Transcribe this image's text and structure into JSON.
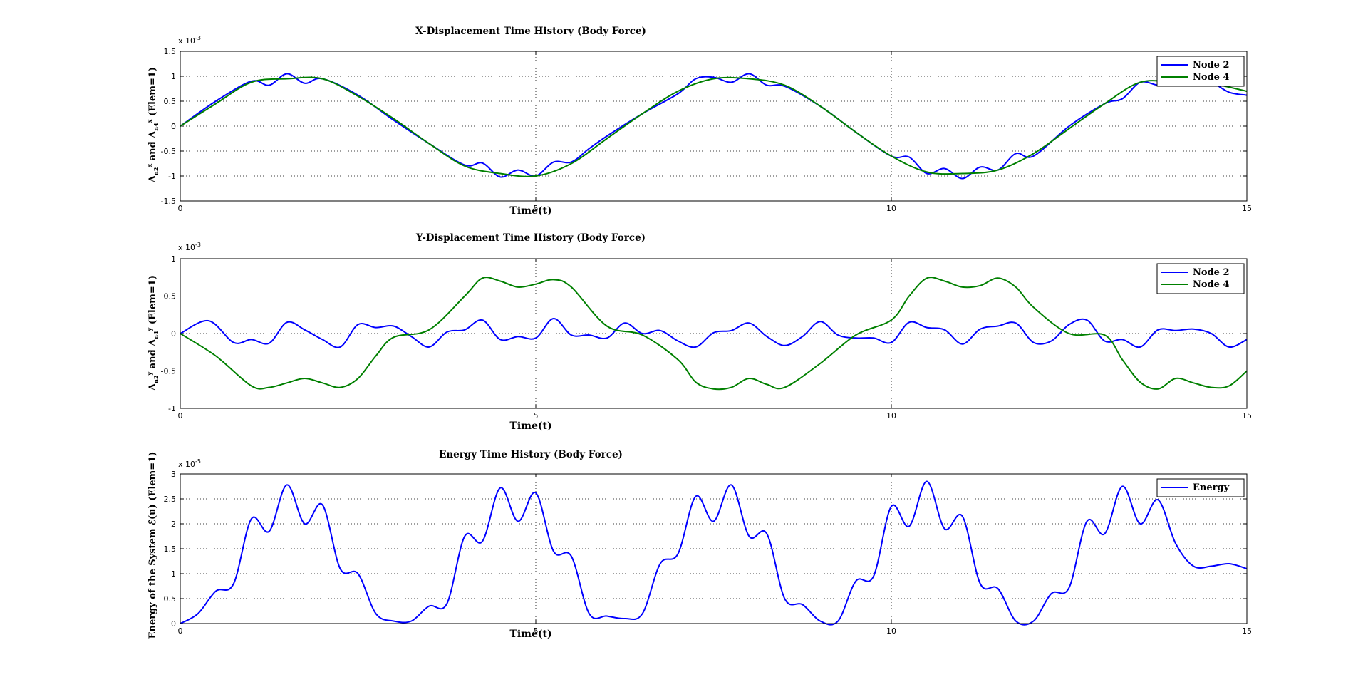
{
  "chart_data": [
    {
      "type": "line",
      "title": "X-Displacement Time History (Body Force)",
      "xlabel": "Time(t)",
      "ylabel": "Δ_{n2}^x  and  Δ_{n4}^x (Elem=1)",
      "y_exponent": "x 10-3",
      "xlim": [
        0,
        15
      ],
      "ylim": [
        -1.5,
        1.5
      ],
      "xticks": [
        "0",
        "5",
        "10",
        "15"
      ],
      "yticks": [
        "-1.5",
        "-1",
        "-0.5",
        "0",
        "0.5",
        "1",
        "1.5"
      ],
      "grid": "dotted",
      "legend_position": "top-right",
      "series": [
        {
          "name": "Node 2",
          "color": "#0000ff",
          "x": [
            0,
            0.5,
            1,
            1.25,
            1.5,
            1.75,
            2,
            2.5,
            3,
            3.5,
            4,
            4.25,
            4.5,
            4.75,
            5,
            5.25,
            5.5,
            5.75,
            6,
            6.5,
            7,
            7.25,
            7.5,
            7.75,
            8,
            8.25,
            8.5,
            9,
            9.5,
            10,
            10.25,
            10.5,
            10.75,
            11,
            11.25,
            11.5,
            11.75,
            12,
            12.5,
            13,
            13.25,
            13.5,
            13.75,
            14,
            14.25,
            14.5,
            14.75,
            15
          ],
          "values": [
            0,
            0.5,
            0.9,
            0.82,
            1.05,
            0.86,
            0.95,
            0.62,
            0.12,
            -0.35,
            -0.78,
            -0.74,
            -1.02,
            -0.88,
            -1.0,
            -0.72,
            -0.72,
            -0.45,
            -0.2,
            0.25,
            0.65,
            0.95,
            0.98,
            0.88,
            1.05,
            0.82,
            0.8,
            0.4,
            -0.12,
            -0.6,
            -0.62,
            -0.95,
            -0.85,
            -1.05,
            -0.82,
            -0.88,
            -0.55,
            -0.6,
            0.0,
            0.45,
            0.55,
            0.88,
            0.82,
            0.82,
            0.92,
            0.88,
            0.68,
            0.62
          ]
        },
        {
          "name": "Node 4",
          "color": "#008000",
          "x": [
            0,
            0.5,
            1,
            1.5,
            2,
            2.5,
            3,
            3.5,
            4,
            4.5,
            5,
            5.5,
            6,
            6.5,
            7,
            7.5,
            8,
            8.5,
            9,
            9.5,
            10,
            10.5,
            11,
            11.5,
            12,
            12.5,
            13,
            13.5,
            14,
            14.5,
            15
          ],
          "values": [
            0,
            0.45,
            0.88,
            0.95,
            0.95,
            0.6,
            0.15,
            -0.35,
            -0.8,
            -0.95,
            -1.0,
            -0.75,
            -0.25,
            0.25,
            0.7,
            0.95,
            0.95,
            0.82,
            0.4,
            -0.12,
            -0.6,
            -0.92,
            -0.95,
            -0.88,
            -0.55,
            -0.05,
            0.45,
            0.88,
            0.88,
            0.85,
            0.7
          ]
        }
      ]
    },
    {
      "type": "line",
      "title": "Y-Displacement Time History (Body Force)",
      "xlabel": "Time(t)",
      "ylabel": "Δ_{n2}^y  and  Δ_{n4}^y (Elem=1)",
      "y_exponent": "x 10-3",
      "xlim": [
        0,
        15
      ],
      "ylim": [
        -1,
        1
      ],
      "xticks": [
        "0",
        "5",
        "10",
        "15"
      ],
      "yticks": [
        "-1",
        "-0.5",
        "0",
        "0.5",
        "1"
      ],
      "grid": "dotted",
      "legend_position": "top-right",
      "series": [
        {
          "name": "Node 2",
          "color": "#0000ff",
          "x": [
            0,
            0.4,
            0.75,
            1,
            1.25,
            1.5,
            1.75,
            2,
            2.25,
            2.5,
            2.75,
            3,
            3.25,
            3.5,
            3.75,
            4,
            4.25,
            4.5,
            4.75,
            5,
            5.25,
            5.5,
            5.75,
            6,
            6.25,
            6.5,
            6.75,
            7,
            7.25,
            7.5,
            7.75,
            8,
            8.25,
            8.5,
            8.75,
            9,
            9.25,
            9.5,
            9.75,
            10,
            10.25,
            10.5,
            10.75,
            11,
            11.25,
            11.5,
            11.75,
            12,
            12.25,
            12.5,
            12.75,
            13,
            13.25,
            13.5,
            13.75,
            14,
            14.25,
            14.5,
            14.75,
            15
          ],
          "values": [
            0,
            0.17,
            -0.12,
            -0.08,
            -0.13,
            0.15,
            0.05,
            -0.08,
            -0.18,
            0.12,
            0.08,
            0.1,
            -0.04,
            -0.18,
            0.02,
            0.05,
            0.18,
            -0.08,
            -0.04,
            -0.06,
            0.2,
            -0.02,
            -0.02,
            -0.06,
            0.14,
            0.0,
            0.04,
            -0.1,
            -0.18,
            0.01,
            0.04,
            0.14,
            -0.04,
            -0.16,
            -0.04,
            0.16,
            -0.02,
            -0.06,
            -0.06,
            -0.12,
            0.15,
            0.08,
            0.05,
            -0.14,
            0.06,
            0.1,
            0.14,
            -0.12,
            -0.1,
            0.12,
            0.18,
            -0.1,
            -0.08,
            -0.18,
            0.05,
            0.04,
            0.06,
            0.0,
            -0.18,
            -0.08
          ]
        },
        {
          "name": "Node 4",
          "color": "#008000",
          "x": [
            0,
            0.5,
            1,
            1.25,
            1.5,
            1.75,
            2,
            2.25,
            2.5,
            2.75,
            3,
            3.5,
            4,
            4.25,
            4.5,
            4.75,
            5,
            5.25,
            5.5,
            6,
            6.5,
            7,
            7.25,
            7.5,
            7.75,
            8,
            8.25,
            8.5,
            9,
            9.5,
            10,
            10.25,
            10.5,
            10.75,
            11,
            11.25,
            11.5,
            11.75,
            12,
            12.5,
            13,
            13.25,
            13.5,
            13.75,
            14,
            14.25,
            14.5,
            14.75,
            15
          ],
          "values": [
            0,
            -0.3,
            -0.7,
            -0.72,
            -0.66,
            -0.6,
            -0.66,
            -0.72,
            -0.6,
            -0.3,
            -0.05,
            0.05,
            0.5,
            0.74,
            0.7,
            0.62,
            0.66,
            0.72,
            0.62,
            0.1,
            -0.02,
            -0.35,
            -0.65,
            -0.74,
            -0.72,
            -0.6,
            -0.68,
            -0.72,
            -0.4,
            -0.02,
            0.18,
            0.5,
            0.74,
            0.7,
            0.62,
            0.64,
            0.74,
            0.62,
            0.35,
            0.0,
            -0.02,
            -0.35,
            -0.65,
            -0.74,
            -0.6,
            -0.66,
            -0.72,
            -0.7,
            -0.5
          ]
        }
      ]
    },
    {
      "type": "line",
      "title": "Energy Time History (Body Force)",
      "xlabel": "Time(t)",
      "ylabel": "Energy of the System ℰ(u) (Elem=1)",
      "y_exponent": "x 10-5",
      "xlim": [
        0,
        15
      ],
      "ylim": [
        0,
        3
      ],
      "xticks": [
        "0",
        "5",
        "10",
        "15"
      ],
      "yticks": [
        "0",
        "0.5",
        "1",
        "1.5",
        "2",
        "2.5",
        "3"
      ],
      "grid": "dotted",
      "legend_position": "top-right",
      "series": [
        {
          "name": "Energy",
          "color": "#0000ff",
          "x": [
            0,
            0.25,
            0.5,
            0.75,
            1,
            1.25,
            1.5,
            1.75,
            2,
            2.25,
            2.5,
            2.75,
            3,
            3.25,
            3.5,
            3.75,
            4,
            4.25,
            4.5,
            4.75,
            5,
            5.25,
            5.5,
            5.75,
            6,
            6.25,
            6.5,
            6.75,
            7,
            7.25,
            7.5,
            7.75,
            8,
            8.25,
            8.5,
            8.75,
            9,
            9.25,
            9.5,
            9.75,
            10,
            10.25,
            10.5,
            10.75,
            11,
            11.25,
            11.5,
            11.75,
            12,
            12.25,
            12.5,
            12.75,
            13,
            13.25,
            13.5,
            13.75,
            14,
            14.25,
            14.5,
            14.75,
            15
          ],
          "values": [
            0,
            0.2,
            0.65,
            0.8,
            2.1,
            1.85,
            2.78,
            2.0,
            2.38,
            1.1,
            1.0,
            0.2,
            0.05,
            0.05,
            0.35,
            0.4,
            1.75,
            1.65,
            2.72,
            2.05,
            2.62,
            1.45,
            1.35,
            0.2,
            0.15,
            0.1,
            0.2,
            1.2,
            1.4,
            2.55,
            2.05,
            2.78,
            1.75,
            1.8,
            0.5,
            0.38,
            0.05,
            0.05,
            0.85,
            0.95,
            2.35,
            1.95,
            2.85,
            1.9,
            2.15,
            0.8,
            0.7,
            0.05,
            0.05,
            0.6,
            0.72,
            2.05,
            1.8,
            2.75,
            2.0,
            2.48,
            1.6,
            1.15,
            1.15,
            1.2,
            1.1
          ]
        }
      ]
    }
  ]
}
